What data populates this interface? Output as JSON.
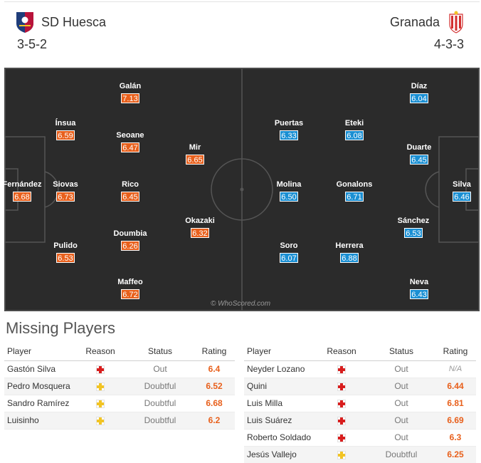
{
  "home": {
    "name": "SD Huesca",
    "formation": "3-5-2",
    "crest_icon": "sd-huesca-crest-icon",
    "players": [
      {
        "name": "Galán",
        "rating": "7.13"
      },
      {
        "name": "Ínsua",
        "rating": "6.59"
      },
      {
        "name": "Seoane",
        "rating": "6.47"
      },
      {
        "name": "Mir",
        "rating": "6.65"
      },
      {
        "name": "Fernández",
        "rating": "6.68"
      },
      {
        "name": "Siovas",
        "rating": "6.73"
      },
      {
        "name": "Rico",
        "rating": "6.45"
      },
      {
        "name": "Okazaki",
        "rating": "6.32"
      },
      {
        "name": "Doumbia",
        "rating": "6.26"
      },
      {
        "name": "Pulido",
        "rating": "6.53"
      },
      {
        "name": "Maffeo",
        "rating": "6.72"
      }
    ]
  },
  "away": {
    "name": "Granada",
    "formation": "4-3-3",
    "crest_icon": "granada-crest-icon",
    "players": [
      {
        "name": "Díaz",
        "rating": "6.04"
      },
      {
        "name": "Puertas",
        "rating": "6.33"
      },
      {
        "name": "Eteki",
        "rating": "6.08"
      },
      {
        "name": "Duarte",
        "rating": "6.45"
      },
      {
        "name": "Molina",
        "rating": "6.50"
      },
      {
        "name": "Gonalons",
        "rating": "6.71"
      },
      {
        "name": "Silva",
        "rating": "6.46"
      },
      {
        "name": "Sánchez",
        "rating": "6.53"
      },
      {
        "name": "Soro",
        "rating": "6.07"
      },
      {
        "name": "Herrera",
        "rating": "6.88"
      },
      {
        "name": "Neva",
        "rating": "6.43"
      }
    ]
  },
  "watermark": "© WhoScored.com",
  "missing": {
    "title": "Missing Players",
    "headers": {
      "player": "Player",
      "reason": "Reason",
      "status": "Status",
      "rating": "Rating"
    },
    "home": [
      {
        "player": "Gastón Silva",
        "reason": "injury-red-cross-icon",
        "status": "Out",
        "rating": "6.4"
      },
      {
        "player": "Pedro Mosquera",
        "reason": "doubtful-yellow-cross-icon",
        "status": "Doubtful",
        "rating": "6.52"
      },
      {
        "player": "Sandro Ramírez",
        "reason": "doubtful-yellow-cross-icon",
        "status": "Doubtful",
        "rating": "6.68"
      },
      {
        "player": "Luisinho",
        "reason": "doubtful-yellow-cross-icon",
        "status": "Doubtful",
        "rating": "6.2"
      }
    ],
    "away": [
      {
        "player": "Neyder Lozano",
        "reason": "injury-red-cross-icon",
        "status": "Out",
        "rating": "N/A"
      },
      {
        "player": "Quini",
        "reason": "injury-red-cross-icon",
        "status": "Out",
        "rating": "6.44"
      },
      {
        "player": "Luis Milla",
        "reason": "injury-red-cross-icon",
        "status": "Out",
        "rating": "6.81"
      },
      {
        "player": "Luis Suárez",
        "reason": "injury-red-cross-icon",
        "status": "Out",
        "rating": "6.69"
      },
      {
        "player": "Roberto Soldado",
        "reason": "injury-red-cross-icon",
        "status": "Out",
        "rating": "6.3"
      },
      {
        "player": "Jesús Vallejo",
        "reason": "doubtful-yellow-cross-icon",
        "status": "Doubtful",
        "rating": "6.25"
      }
    ]
  },
  "colors": {
    "home_rating": "#e8601c",
    "away_rating": "#1a8fd3",
    "pitch": "#2b2b2b",
    "injury": "#d81e1e",
    "doubtful": "#f2c424"
  }
}
